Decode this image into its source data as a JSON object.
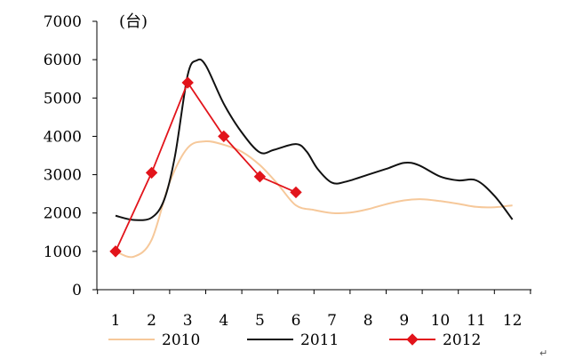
{
  "chart_data": {
    "type": "line",
    "unit_label": "(台)",
    "x": [
      1,
      2,
      3,
      4,
      5,
      6,
      7,
      8,
      9,
      10,
      11,
      12
    ],
    "x_tick_labels": [
      "1",
      "2",
      "3",
      "4",
      "5",
      "6",
      "7",
      "8",
      "9",
      "10",
      "11",
      "12"
    ],
    "ylim": [
      0,
      7000
    ],
    "y_ticks": [
      0,
      1000,
      2000,
      3000,
      4000,
      5000,
      6000,
      7000
    ],
    "y_tick_labels": [
      "0",
      "1000",
      "2000",
      "3000",
      "4000",
      "5000",
      "6000",
      "7000"
    ],
    "grid": false,
    "legend_position": "bottom",
    "series": [
      {
        "name": "2010",
        "color": "#f6c89a",
        "marker": "none",
        "smooth": true,
        "points": [
          [
            1,
            1000
          ],
          [
            1.5,
            860
          ],
          [
            2,
            1300
          ],
          [
            2.5,
            2800
          ],
          [
            3,
            3700
          ],
          [
            3.5,
            3870
          ],
          [
            4,
            3780
          ],
          [
            4.5,
            3600
          ],
          [
            5,
            3250
          ],
          [
            5.5,
            2750
          ],
          [
            6,
            2200
          ],
          [
            6.5,
            2080
          ],
          [
            7,
            2000
          ],
          [
            7.5,
            2010
          ],
          [
            8,
            2100
          ],
          [
            8.5,
            2230
          ],
          [
            9,
            2330
          ],
          [
            9.5,
            2360
          ],
          [
            10,
            2310
          ],
          [
            10.5,
            2240
          ],
          [
            11,
            2160
          ],
          [
            11.5,
            2150
          ],
          [
            12,
            2200
          ]
        ]
      },
      {
        "name": "2011",
        "color": "#111111",
        "marker": "none",
        "smooth": true,
        "points": [
          [
            1,
            1930
          ],
          [
            1.5,
            1820
          ],
          [
            2,
            1880
          ],
          [
            2.35,
            2350
          ],
          [
            2.65,
            3500
          ],
          [
            3,
            5600
          ],
          [
            3.25,
            5980
          ],
          [
            3.5,
            5850
          ],
          [
            4,
            4850
          ],
          [
            4.5,
            4100
          ],
          [
            5,
            3580
          ],
          [
            5.4,
            3650
          ],
          [
            6,
            3800
          ],
          [
            6.3,
            3600
          ],
          [
            6.6,
            3150
          ],
          [
            7,
            2790
          ],
          [
            7.4,
            2820
          ],
          [
            8,
            3000
          ],
          [
            8.5,
            3150
          ],
          [
            9,
            3310
          ],
          [
            9.4,
            3250
          ],
          [
            10,
            2950
          ],
          [
            10.5,
            2850
          ],
          [
            11,
            2850
          ],
          [
            11.5,
            2450
          ],
          [
            12,
            1830
          ]
        ]
      },
      {
        "name": "2012",
        "color": "#e2141b",
        "marker": "diamond",
        "smooth": false,
        "points": [
          [
            1,
            1000
          ],
          [
            2,
            3050
          ],
          [
            3,
            5400
          ],
          [
            4,
            4000
          ],
          [
            5,
            2950
          ],
          [
            6,
            2540
          ]
        ]
      }
    ]
  }
}
